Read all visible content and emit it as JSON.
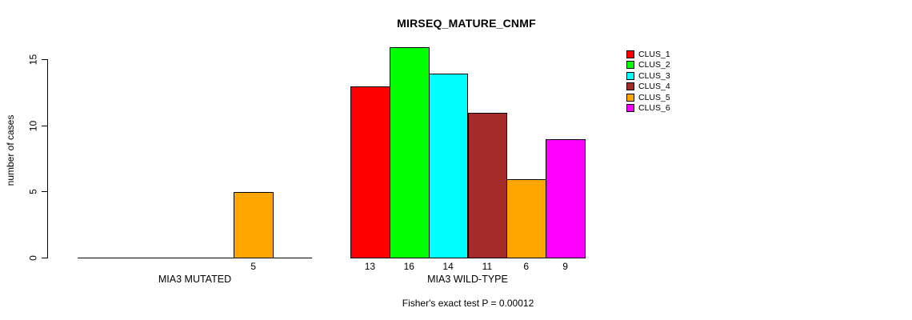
{
  "colors": {
    "background": "#ffffff",
    "axis": "#000000",
    "text": "#000000",
    "bar_border": "#000000"
  },
  "chart_data": {
    "type": "bar",
    "title": "MIRSEQ_MATURE_CNMF",
    "xlabel": "",
    "ylabel": "number of cases",
    "ylim": [
      0,
      16
    ],
    "yticks": [
      0,
      5,
      10,
      15
    ],
    "grid": false,
    "legend_position": "top-right",
    "clusters": [
      "CLUS_1",
      "CLUS_2",
      "CLUS_3",
      "CLUS_4",
      "CLUS_5",
      "CLUS_6"
    ],
    "cluster_colors": [
      "#FF0000",
      "#00FF00",
      "#00FFFF",
      "#A52A2A",
      "#FFA500",
      "#FF00FF"
    ],
    "groups": [
      {
        "label": "MIA3 MUTATED",
        "values": [
          0,
          0,
          0,
          0,
          5,
          0
        ]
      },
      {
        "label": "MIA3 WILD-TYPE",
        "values": [
          13,
          16,
          14,
          11,
          6,
          9
        ]
      }
    ],
    "legend": [
      {
        "label": "CLUS_1",
        "color": "#FF0000"
      },
      {
        "label": "CLUS_2",
        "color": "#00FF00"
      },
      {
        "label": "CLUS_3",
        "color": "#00FFFF"
      },
      {
        "label": "CLUS_4",
        "color": "#A52A2A"
      },
      {
        "label": "CLUS_5",
        "color": "#FFA500"
      },
      {
        "label": "CLUS_6",
        "color": "#FF00FF"
      }
    ],
    "annotation": "Fisher's exact test P = 0.00012"
  }
}
